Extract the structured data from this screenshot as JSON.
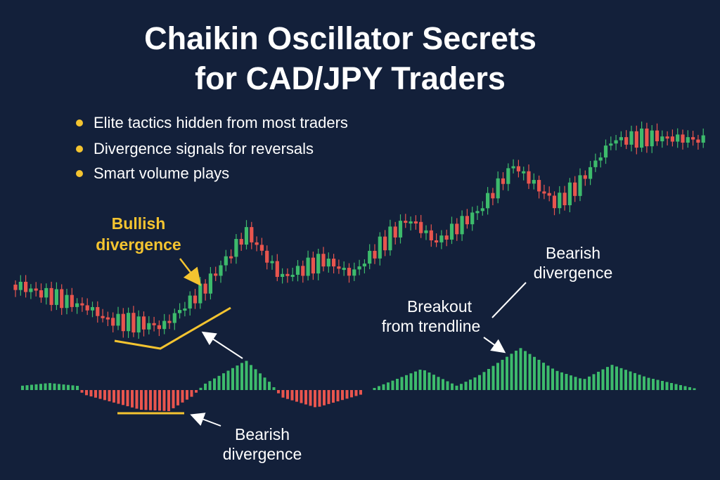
{
  "title": {
    "line1": "Chaikin Oscillator Secrets",
    "line2": "for CAD/JPY Traders"
  },
  "bullets": [
    "Elite tactics hidden from most traders",
    "Divergence signals for reversals",
    "Smart volume plays"
  ],
  "annotations": {
    "bullish_divergence": {
      "line1": "Bullish",
      "line2": "divergence"
    },
    "bearish_divergence_top": {
      "line1": "Bearish",
      "line2": "divergence"
    },
    "breakout": {
      "line1": "Breakout",
      "line2": "from trendline"
    },
    "bearish_divergence_bottom": {
      "line1": "Bearish",
      "line2": "divergence"
    }
  }
}
